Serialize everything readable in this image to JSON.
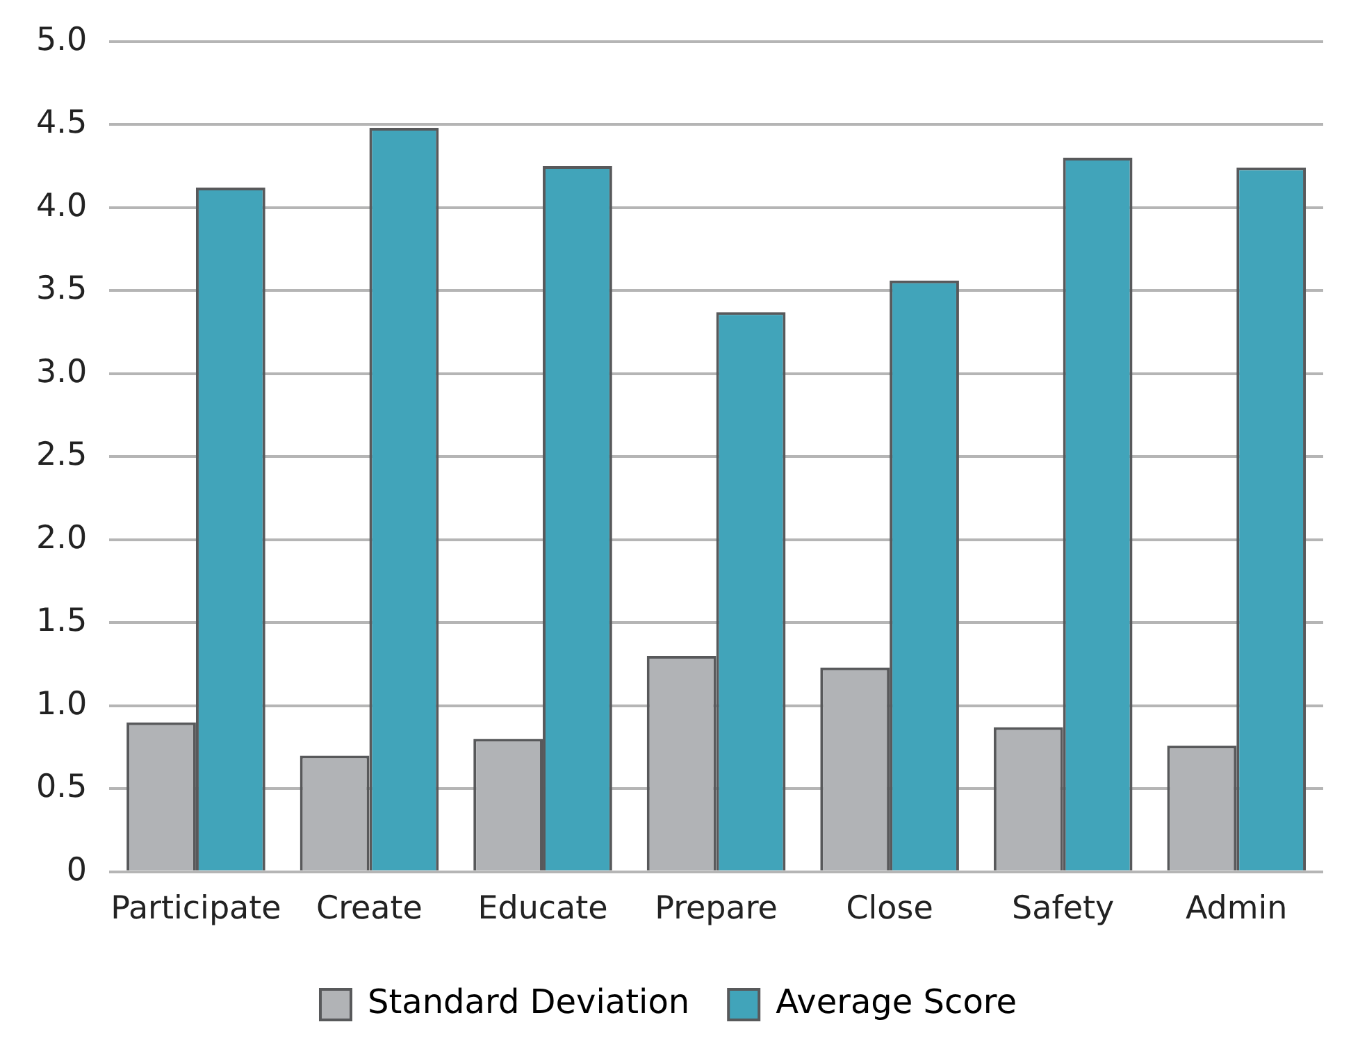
{
  "chart_data": {
    "type": "bar",
    "categories": [
      "Participate",
      "Create",
      "Educate",
      "Prepare",
      "Close",
      "Safety",
      "Admin"
    ],
    "series": [
      {
        "name": "Standard Deviation",
        "color": "#b1b3b6",
        "values": [
          0.9,
          0.7,
          0.8,
          1.3,
          1.23,
          0.87,
          0.76
        ]
      },
      {
        "name": "Average Score",
        "color": "#41a4ba",
        "values": [
          4.12,
          4.48,
          4.25,
          3.37,
          3.56,
          4.3,
          4.24
        ]
      }
    ],
    "ylim": [
      0,
      5
    ],
    "yticks": [
      {
        "value": 0,
        "label": "0"
      },
      {
        "value": 0.5,
        "label": "0.5"
      },
      {
        "value": 1,
        "label": "1.0"
      },
      {
        "value": 1.5,
        "label": "1.5"
      },
      {
        "value": 2,
        "label": "2.0"
      },
      {
        "value": 2.5,
        "label": "2.5"
      },
      {
        "value": 3,
        "label": "3.0"
      },
      {
        "value": 3.5,
        "label": "3.5"
      },
      {
        "value": 4,
        "label": "4.0"
      },
      {
        "value": 4.5,
        "label": "4.5"
      },
      {
        "value": 5,
        "label": "5.0"
      }
    ],
    "grid": "y",
    "legend": "bottom"
  }
}
